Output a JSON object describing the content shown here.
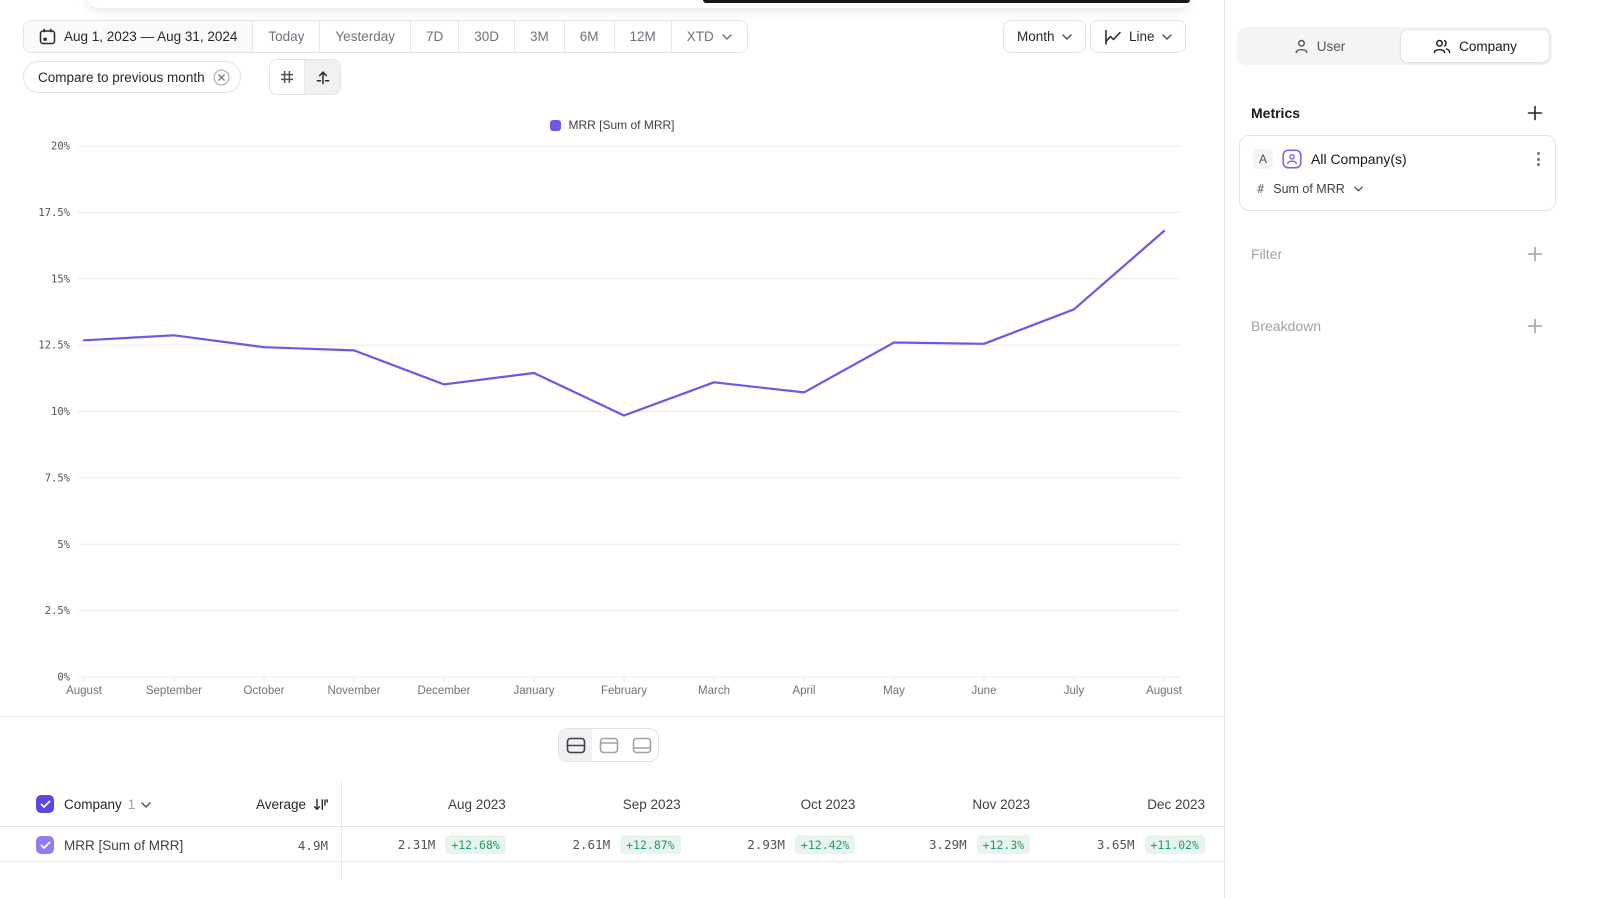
{
  "toolbar": {
    "date_range": "Aug 1, 2023 — Aug 31, 2024",
    "presets": [
      "Today",
      "Yesterday",
      "7D",
      "30D",
      "3M",
      "6M",
      "12M"
    ],
    "xtd_label": "XTD",
    "granularity_label": "Month",
    "chart_type_label": "Line",
    "compare_chip": "Compare to previous month"
  },
  "legend": {
    "label": "MRR [Sum of MRR]"
  },
  "chart_data": {
    "type": "line",
    "title": "MRR [Sum of MRR] monthly growth %",
    "categories": [
      "August",
      "September",
      "October",
      "November",
      "December",
      "January",
      "February",
      "March",
      "April",
      "May",
      "June",
      "July",
      "August"
    ],
    "series": [
      {
        "name": "MRR [Sum of MRR]",
        "color": "#6a5ae3",
        "values": [
          12.68,
          12.87,
          12.42,
          12.3,
          11.02,
          11.45,
          9.85,
          11.1,
          10.72,
          12.6,
          12.55,
          13.85,
          16.8
        ]
      }
    ],
    "y_ticks": [
      {
        "v": 0,
        "label": "0%"
      },
      {
        "v": 2.5,
        "label": "2.5%"
      },
      {
        "v": 5,
        "label": "5%"
      },
      {
        "v": 7.5,
        "label": "7.5%"
      },
      {
        "v": 10,
        "label": "10%"
      },
      {
        "v": 12.5,
        "label": "12.5%"
      },
      {
        "v": 15,
        "label": "15%"
      },
      {
        "v": 17.5,
        "label": "17.5%"
      },
      {
        "v": 20,
        "label": "20%"
      }
    ],
    "ylim": [
      0,
      20
    ],
    "grid": true,
    "legend_position": "top"
  },
  "table": {
    "group_label": "Company",
    "group_count": "1",
    "average_label": "Average",
    "columns": [
      "Aug 2023",
      "Sep 2023",
      "Oct 2023",
      "Nov 2023",
      "Dec 2023"
    ],
    "rows": [
      {
        "name": "MRR [Sum of MRR]",
        "average": "4.9M",
        "cells": [
          {
            "value": "2.31M",
            "delta": "+12.68%"
          },
          {
            "value": "2.61M",
            "delta": "+12.87%"
          },
          {
            "value": "2.93M",
            "delta": "+12.42%"
          },
          {
            "value": "3.29M",
            "delta": "+12.3%"
          },
          {
            "value": "3.65M",
            "delta": "+11.02%"
          }
        ]
      }
    ]
  },
  "sidebar": {
    "toggle": {
      "user_label": "User",
      "company_label": "Company"
    },
    "metrics_title": "Metrics",
    "metric_card": {
      "badge": "A",
      "name": "All Company(s)",
      "aggregation": "Sum of MRR"
    },
    "filter_title": "Filter",
    "breakdown_title": "Breakdown"
  },
  "colors": {
    "accent": "#6a5ae3",
    "badge_green_text": "#1f9d66",
    "badge_green_bg": "#e7f5ee",
    "checkbox_header": "#5a49e0",
    "checkbox_row": "#8f7ef2"
  }
}
